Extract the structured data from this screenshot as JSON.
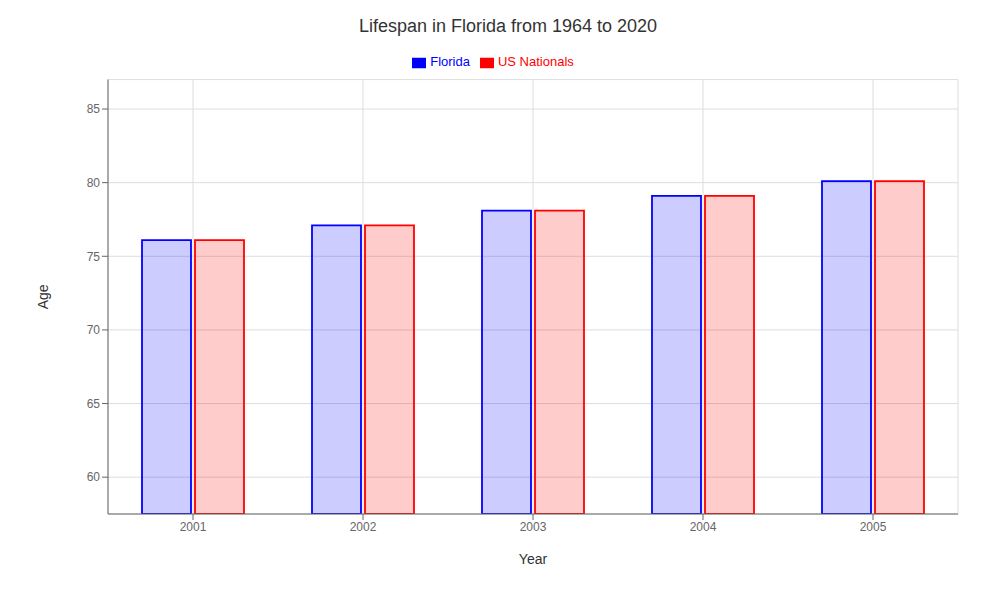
{
  "chart_data": {
    "type": "bar",
    "title": "Lifespan in Florida from 1964 to 2020",
    "x_label": "Year",
    "y_label": "Age",
    "categories": [
      "2001",
      "2002",
      "2003",
      "2004",
      "2005"
    ],
    "series": [
      {
        "name": "Florida",
        "color": "#0000ff",
        "values": [
          76.1,
          77.1,
          78.1,
          79.1,
          80.1
        ]
      },
      {
        "name": "US Nationals",
        "color": "#ff0000",
        "values": [
          76.1,
          77.1,
          78.1,
          79.1,
          80.1
        ]
      }
    ],
    "ylim": [
      57.5,
      87
    ],
    "yticks": [
      60,
      65,
      70,
      75,
      80,
      85
    ],
    "grid": true,
    "legend": "top"
  }
}
